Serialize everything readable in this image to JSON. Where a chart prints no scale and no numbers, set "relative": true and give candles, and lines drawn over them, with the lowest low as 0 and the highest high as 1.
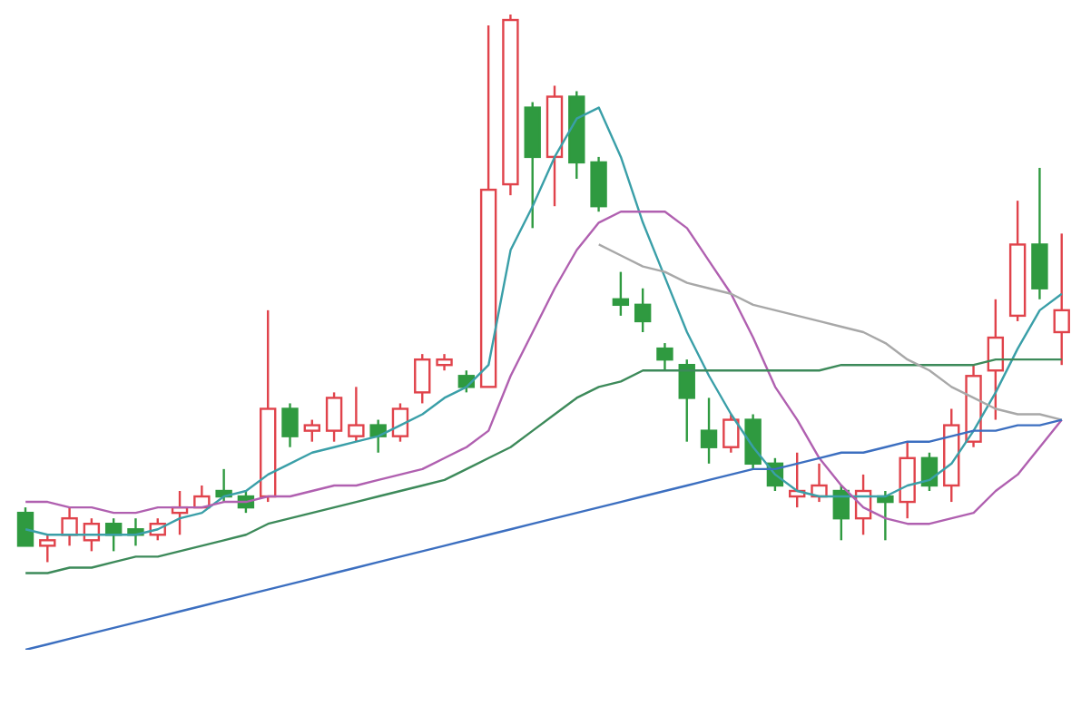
{
  "chart_data": {
    "type": "candlestick",
    "relative": true,
    "categories": [
      null,
      null,
      null,
      null,
      null,
      null,
      null,
      null,
      null,
      null,
      null,
      null,
      null,
      null,
      null,
      null,
      null,
      null,
      null,
      null,
      null,
      null,
      null,
      null,
      null,
      null,
      null,
      null,
      null,
      null,
      null,
      null,
      null,
      null,
      null,
      null,
      null,
      null,
      null,
      null,
      null,
      null,
      null,
      null,
      null,
      null,
      null,
      null
    ],
    "ohlc": [
      [
        0.09,
        0.1,
        0.03,
        0.03
      ],
      [
        0.03,
        0.05,
        0,
        0.04
      ],
      [
        0.05,
        0.1,
        0.03,
        0.08
      ],
      [
        0.04,
        0.08,
        0.02,
        0.07
      ],
      [
        0.07,
        0.08,
        0.02,
        0.05
      ],
      [
        0.06,
        0.08,
        0.03,
        0.05
      ],
      [
        0.05,
        0.08,
        0.04,
        0.07
      ],
      [
        0.09,
        0.13,
        0.05,
        0.1
      ],
      [
        0.1,
        0.14,
        0.1,
        0.12
      ],
      [
        0.13,
        0.17,
        0.11,
        0.12
      ],
      [
        0.12,
        0.13,
        0.09,
        0.1
      ],
      [
        0.12,
        0.46,
        0.11,
        0.28
      ],
      [
        0.28,
        0.29,
        0.21,
        0.23
      ],
      [
        0.24,
        0.26,
        0.22,
        0.25
      ],
      [
        0.24,
        0.31,
        0.22,
        0.3
      ],
      [
        0.23,
        0.32,
        0.22,
        0.25
      ],
      [
        0.25,
        0.26,
        0.2,
        0.23
      ],
      [
        0.23,
        0.29,
        0.22,
        0.28
      ],
      [
        0.31,
        0.38,
        0.29,
        0.37
      ],
      [
        0.36,
        0.38,
        0.35,
        0.37
      ],
      [
        0.34,
        0.35,
        0.31,
        0.32
      ],
      [
        0.32,
        0.98,
        0.32,
        0.68
      ],
      [
        0.69,
        1,
        0.67,
        0.99
      ],
      [
        0.83,
        0.84,
        0.61,
        0.74
      ],
      [
        0.74,
        0.87,
        0.65,
        0.85
      ],
      [
        0.85,
        0.86,
        0.7,
        0.73
      ],
      [
        0.73,
        0.74,
        0.64,
        0.65
      ],
      [
        0.48,
        0.53,
        0.45,
        0.47
      ],
      [
        0.47,
        0.5,
        0.42,
        0.44
      ],
      [
        0.39,
        0.4,
        0.35,
        0.37
      ],
      [
        0.36,
        0.37,
        0.22,
        0.3
      ],
      [
        0.24,
        0.3,
        0.18,
        0.21
      ],
      [
        0.21,
        0.27,
        0.2,
        0.26
      ],
      [
        0.26,
        0.27,
        0.17,
        0.18
      ],
      [
        0.18,
        0.19,
        0.13,
        0.14
      ],
      [
        0.12,
        0.2,
        0.1,
        0.13
      ],
      [
        0.12,
        0.18,
        0.11,
        0.14
      ],
      [
        0.13,
        0.14,
        0.04,
        0.08
      ],
      [
        0.08,
        0.16,
        0.05,
        0.13
      ],
      [
        0.12,
        0.13,
        0.04,
        0.11
      ],
      [
        0.11,
        0.22,
        0.08,
        0.19
      ],
      [
        0.19,
        0.2,
        0.13,
        0.14
      ],
      [
        0.14,
        0.28,
        0.11,
        0.25
      ],
      [
        0.22,
        0.36,
        0.21,
        0.34
      ],
      [
        0.35,
        0.48,
        0.26,
        0.41
      ],
      [
        0.45,
        0.66,
        0.44,
        0.58
      ],
      [
        0.58,
        0.72,
        0.48,
        0.5
      ],
      [
        0.42,
        0.6,
        0.36,
        0.46
      ]
    ],
    "colors": [
      "#2f9a40",
      "#e0434b",
      "#e0434b",
      "#e0434b",
      "#2f9a40",
      "#2f9a40",
      "#e0434b",
      "#e0434b",
      "#e0434b",
      "#2f9a40",
      "#2f9a40",
      "#e0434b",
      "#2f9a40",
      "#e0434b",
      "#e0434b",
      "#e0434b",
      "#2f9a40",
      "#e0434b",
      "#e0434b",
      "#e0434b",
      "#2f9a40",
      "#e0434b",
      "#e0434b",
      "#2f9a40",
      "#e0434b",
      "#2f9a40",
      "#2f9a40",
      "#2f9a40",
      "#2f9a40",
      "#2f9a40",
      "#2f9a40",
      "#2f9a40",
      "#e0434b",
      "#2f9a40",
      "#2f9a40",
      "#e0434b",
      "#e0434b",
      "#2f9a40",
      "#e0434b",
      "#2f9a40",
      "#e0434b",
      "#2f9a40",
      "#e0434b",
      "#e0434b",
      "#e0434b",
      "#e0434b",
      "#2f9a40",
      "#e0434b"
    ],
    "series": [
      {
        "type": "line",
        "color": "#3a9fa8",
        "values": [
          0.06,
          0.05,
          0.05,
          0.05,
          0.05,
          0.05,
          0.06,
          0.08,
          0.09,
          0.12,
          0.13,
          0.16,
          0.18,
          0.2,
          0.21,
          0.22,
          0.23,
          0.25,
          0.27,
          0.3,
          0.32,
          0.36,
          0.57,
          0.65,
          0.74,
          0.81,
          0.83,
          0.74,
          0.62,
          0.52,
          0.42,
          0.34,
          0.27,
          0.21,
          0.16,
          0.13,
          0.12,
          0.12,
          0.12,
          0.12,
          0.14,
          0.15,
          0.18,
          0.24,
          0.31,
          0.39,
          0.46,
          0.49
        ]
      },
      {
        "type": "line",
        "color": "#b060b0",
        "values": [
          0.11,
          0.11,
          0.1,
          0.1,
          0.09,
          0.09,
          0.1,
          0.1,
          0.1,
          0.11,
          0.11,
          0.12,
          0.12,
          0.13,
          0.14,
          0.14,
          0.15,
          0.16,
          0.17,
          0.19,
          0.21,
          0.24,
          0.34,
          0.42,
          0.5,
          0.57,
          0.62,
          0.64,
          0.64,
          0.64,
          0.61,
          0.55,
          0.49,
          0.41,
          0.32,
          0.26,
          0.19,
          0.14,
          0.1,
          0.08,
          0.07,
          0.07,
          0.08,
          0.09,
          0.13,
          0.16,
          0.21,
          0.26
        ]
      },
      {
        "type": "line",
        "color": "#3d8a5a",
        "values": [
          -0.02,
          -0.02,
          -0.01,
          -0.01,
          0,
          0.01,
          0.01,
          0.02,
          0.03,
          0.04,
          0.05,
          0.07,
          0.08,
          0.09,
          0.1,
          0.11,
          0.12,
          0.13,
          0.14,
          0.15,
          0.17,
          0.19,
          0.21,
          0.24,
          0.27,
          0.3,
          0.32,
          0.33,
          0.35,
          0.35,
          0.35,
          0.35,
          0.35,
          0.35,
          0.35,
          0.35,
          0.35,
          0.36,
          0.36,
          0.36,
          0.36,
          0.36,
          0.36,
          0.36,
          0.37,
          0.37,
          0.37,
          0.37
        ]
      },
      {
        "type": "line",
        "color": "#a8a8a8",
        "values": [
          null,
          null,
          null,
          null,
          null,
          null,
          null,
          null,
          null,
          null,
          null,
          null,
          null,
          null,
          null,
          null,
          null,
          null,
          null,
          null,
          null,
          null,
          null,
          null,
          null,
          null,
          0.58,
          0.56,
          0.54,
          0.53,
          0.51,
          0.5,
          0.49,
          0.47,
          0.46,
          0.45,
          0.44,
          0.43,
          0.42,
          0.4,
          0.37,
          0.35,
          0.32,
          0.3,
          0.28,
          0.27,
          0.27,
          0.26
        ]
      },
      {
        "type": "line",
        "color": "#3c6fc0",
        "values": [
          -0.16,
          -0.15,
          -0.14,
          -0.13,
          -0.12,
          -0.11,
          -0.1,
          -0.09,
          -0.08,
          -0.07,
          -0.06,
          -0.05,
          -0.04,
          -0.03,
          -0.02,
          -0.01,
          0,
          0.01,
          0.02,
          0.03,
          0.04,
          0.05,
          0.06,
          0.07,
          0.08,
          0.09,
          0.1,
          0.11,
          0.12,
          0.13,
          0.14,
          0.15,
          0.16,
          0.17,
          0.17,
          0.18,
          0.19,
          0.2,
          0.2,
          0.21,
          0.22,
          0.22,
          0.23,
          0.24,
          0.24,
          0.25,
          0.25,
          0.26
        ]
      }
    ]
  }
}
